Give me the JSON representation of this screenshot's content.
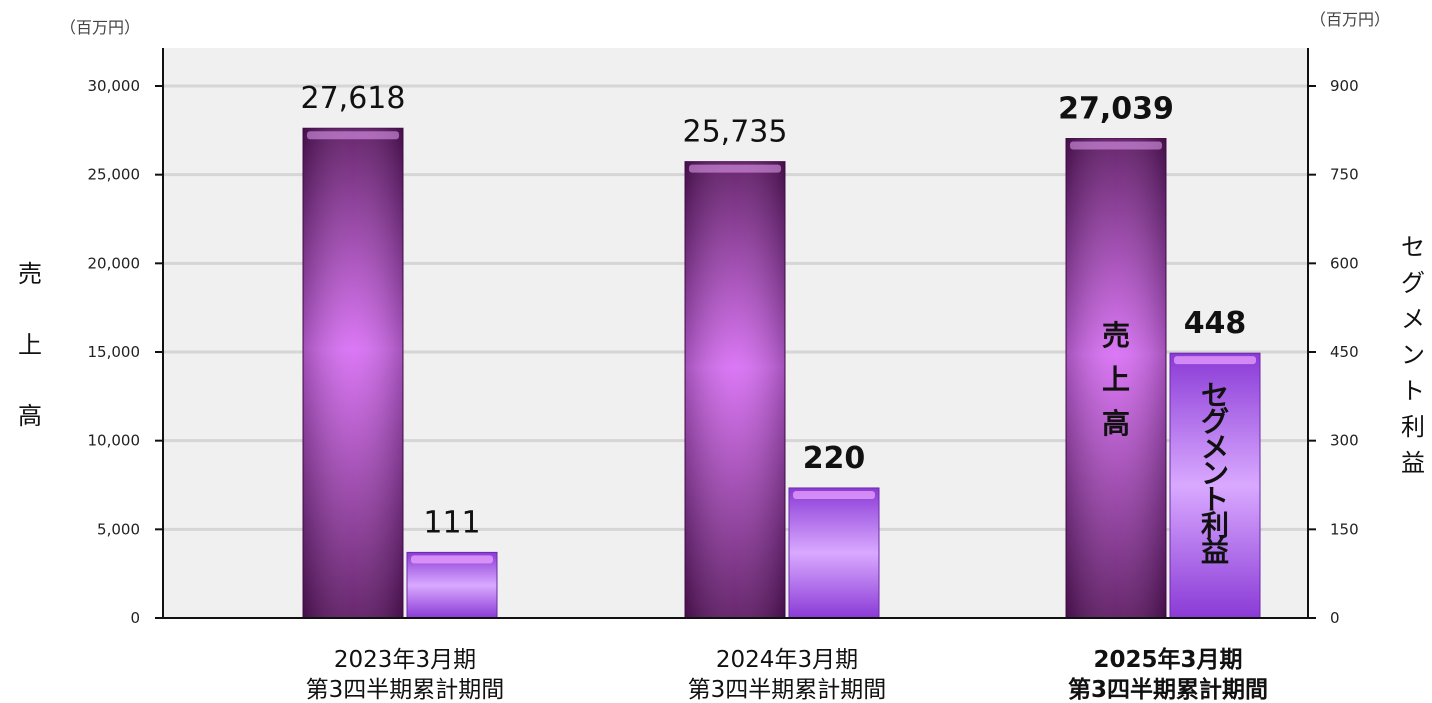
{
  "chart_data": {
    "type": "bar",
    "categories": [
      {
        "line1": "2023年3月期",
        "line2": "第3四半期累計期間",
        "bold": false
      },
      {
        "line1": "2024年3月期",
        "line2": "第3四半期累計期間",
        "bold": false
      },
      {
        "line1": "2025年3月期",
        "line2": "第3四半期累計期間",
        "bold": true
      }
    ],
    "series": [
      {
        "axis": "left",
        "values": [
          27618,
          25735,
          27039
        ],
        "labels": [
          "27,618",
          "25,735",
          "27,039"
        ],
        "label_bold": [
          false,
          false,
          true
        ],
        "colors": {
          "dark": "#5a1460",
          "mid": "#d86cf5"
        }
      },
      {
        "axis": "right",
        "values": [
          111,
          220,
          448
        ],
        "labels": [
          "111",
          "220",
          "448"
        ],
        "label_bold": [
          false,
          true,
          true
        ],
        "colors": {
          "dark": "#8a3ad6",
          "mid": "#d9a9ff"
        }
      }
    ],
    "left_axis": {
      "title": "売上高",
      "unit": "（百万円）",
      "ylim": [
        0,
        30000
      ],
      "ticks": [
        "0",
        "5,000",
        "10,000",
        "15,000",
        "20,000",
        "25,000",
        "30,000"
      ]
    },
    "right_axis": {
      "title": "セグメント利益",
      "unit": "（百万円）",
      "ylim": [
        0,
        900
      ],
      "ticks": [
        "0",
        "150",
        "300",
        "450",
        "600",
        "750",
        "900"
      ]
    },
    "in_bar_labels": {
      "sales": "売上高",
      "segment_profit": "セグメント利益"
    },
    "grid": true,
    "plot_background": "#f0f0f0",
    "grid_color": "#d6d6d6"
  }
}
